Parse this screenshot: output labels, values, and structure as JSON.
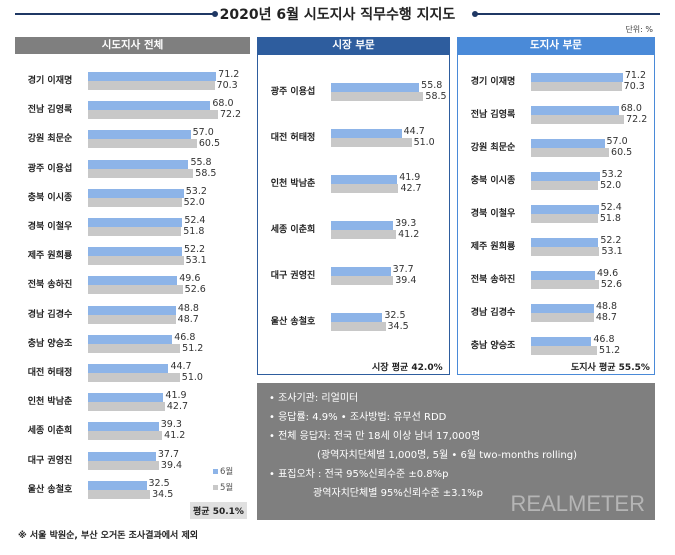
{
  "title": "2020년 6월 시도지사 직무수행 지지도",
  "unit": "단위: %",
  "colors": {
    "june": "#8db4e8",
    "may": "#c8c8c8",
    "header_all": "#7f7f7f",
    "header_mayor": "#2e5d9e",
    "header_governor": "#4a8ad8"
  },
  "legend": {
    "june": "6월",
    "may": "5월"
  },
  "chart_data": [
    {
      "type": "bar",
      "orientation": "horizontal",
      "title": "시도지사 전체",
      "average": "평균 50.1%",
      "categories": [
        "경기 이재명",
        "전남 김영록",
        "강원 최문순",
        "광주 이용섭",
        "충북 이시종",
        "경북 이철우",
        "제주 원희룡",
        "전북 송하진",
        "경남 김경수",
        "충남 양승조",
        "대전 허태정",
        "인천 박남춘",
        "세종 이춘희",
        "대구 권영진",
        "울산 송철호"
      ],
      "series": [
        {
          "name": "6월",
          "values": [
            71.2,
            68.0,
            57.0,
            55.8,
            53.2,
            52.4,
            52.2,
            49.6,
            48.8,
            46.8,
            44.7,
            41.9,
            39.3,
            37.7,
            32.5
          ]
        },
        {
          "name": "5월",
          "values": [
            70.3,
            72.2,
            60.5,
            58.5,
            52.0,
            51.8,
            53.1,
            52.6,
            48.7,
            51.2,
            51.0,
            42.7,
            41.2,
            39.4,
            34.5
          ]
        }
      ]
    },
    {
      "type": "bar",
      "orientation": "horizontal",
      "title": "시장 부문",
      "average": "시장 평균 42.0%",
      "categories": [
        "광주 이용섭",
        "대전 허태정",
        "인천 박남춘",
        "세종 이춘희",
        "대구 권영진",
        "울산 송철호"
      ],
      "series": [
        {
          "name": "6월",
          "values": [
            55.8,
            44.7,
            41.9,
            39.3,
            37.7,
            32.5
          ]
        },
        {
          "name": "5월",
          "values": [
            58.5,
            51.0,
            42.7,
            41.2,
            39.4,
            34.5
          ]
        }
      ]
    },
    {
      "type": "bar",
      "orientation": "horizontal",
      "title": "도지사 부문",
      "average": "도지사 평균 55.5%",
      "categories": [
        "경기 이재명",
        "전남 김영록",
        "강원 최문순",
        "충북 이시종",
        "경북 이철우",
        "제주 원희룡",
        "전북 송하진",
        "경남 김경수",
        "충남 양승조"
      ],
      "series": [
        {
          "name": "6월",
          "values": [
            71.2,
            68.0,
            57.0,
            53.2,
            52.4,
            52.2,
            49.6,
            48.8,
            46.8
          ]
        },
        {
          "name": "5월",
          "values": [
            70.3,
            72.2,
            60.5,
            52.0,
            51.8,
            53.1,
            52.6,
            48.7,
            51.2
          ]
        }
      ]
    }
  ],
  "info": {
    "lines": [
      "• 조사기관: 리얼미터",
      "• 응답률: 4.9% • 조사방법: 유무선 RDD",
      "• 전체 응답자: 전국 만 18세 이상 남녀 17,000명",
      "(광역자치단체별 1,000명, 5월 • 6월 two-months rolling)",
      "• 표집오차 : 전국 95%신뢰수준 ±0.8%p",
      "광역자치단체별 95%신뢰수준 ±3.1%p"
    ],
    "logo": "REALMETER"
  },
  "footnote": "※ 서울 박원순, 부산 오거돈 조사결과에서 제외"
}
